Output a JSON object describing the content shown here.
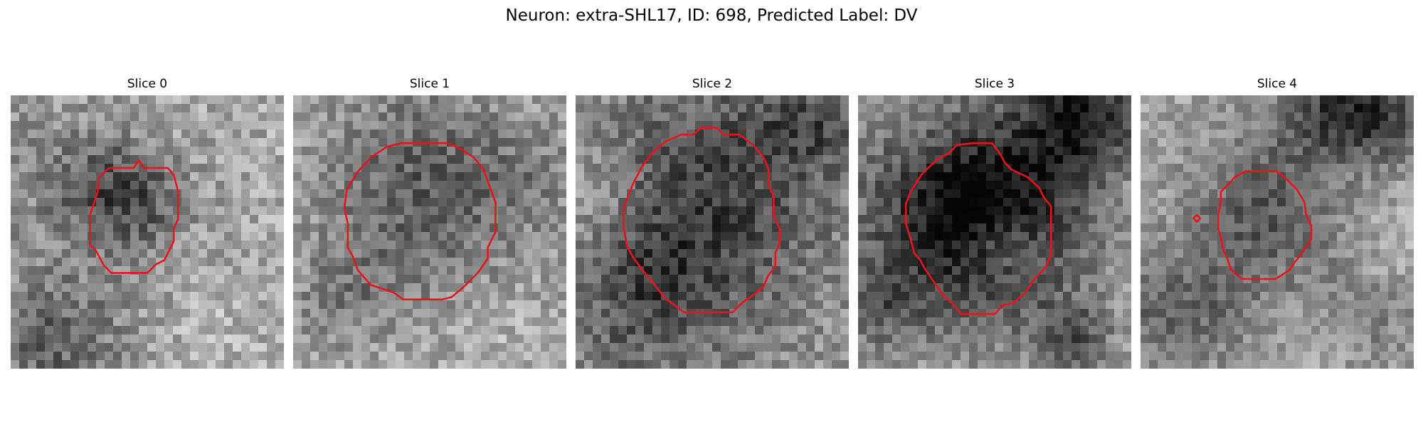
{
  "figure": {
    "title": "Neuron: extra-SHL17, ID: 698, Predicted Label: DV"
  },
  "panels": [
    {
      "title": "Slice 0"
    },
    {
      "title": "Slice 1"
    },
    {
      "title": "Slice 2"
    },
    {
      "title": "Slice 3"
    },
    {
      "title": "Slice 4"
    }
  ],
  "colors": {
    "contour": "#e8141c",
    "background": "#ffffff"
  }
}
